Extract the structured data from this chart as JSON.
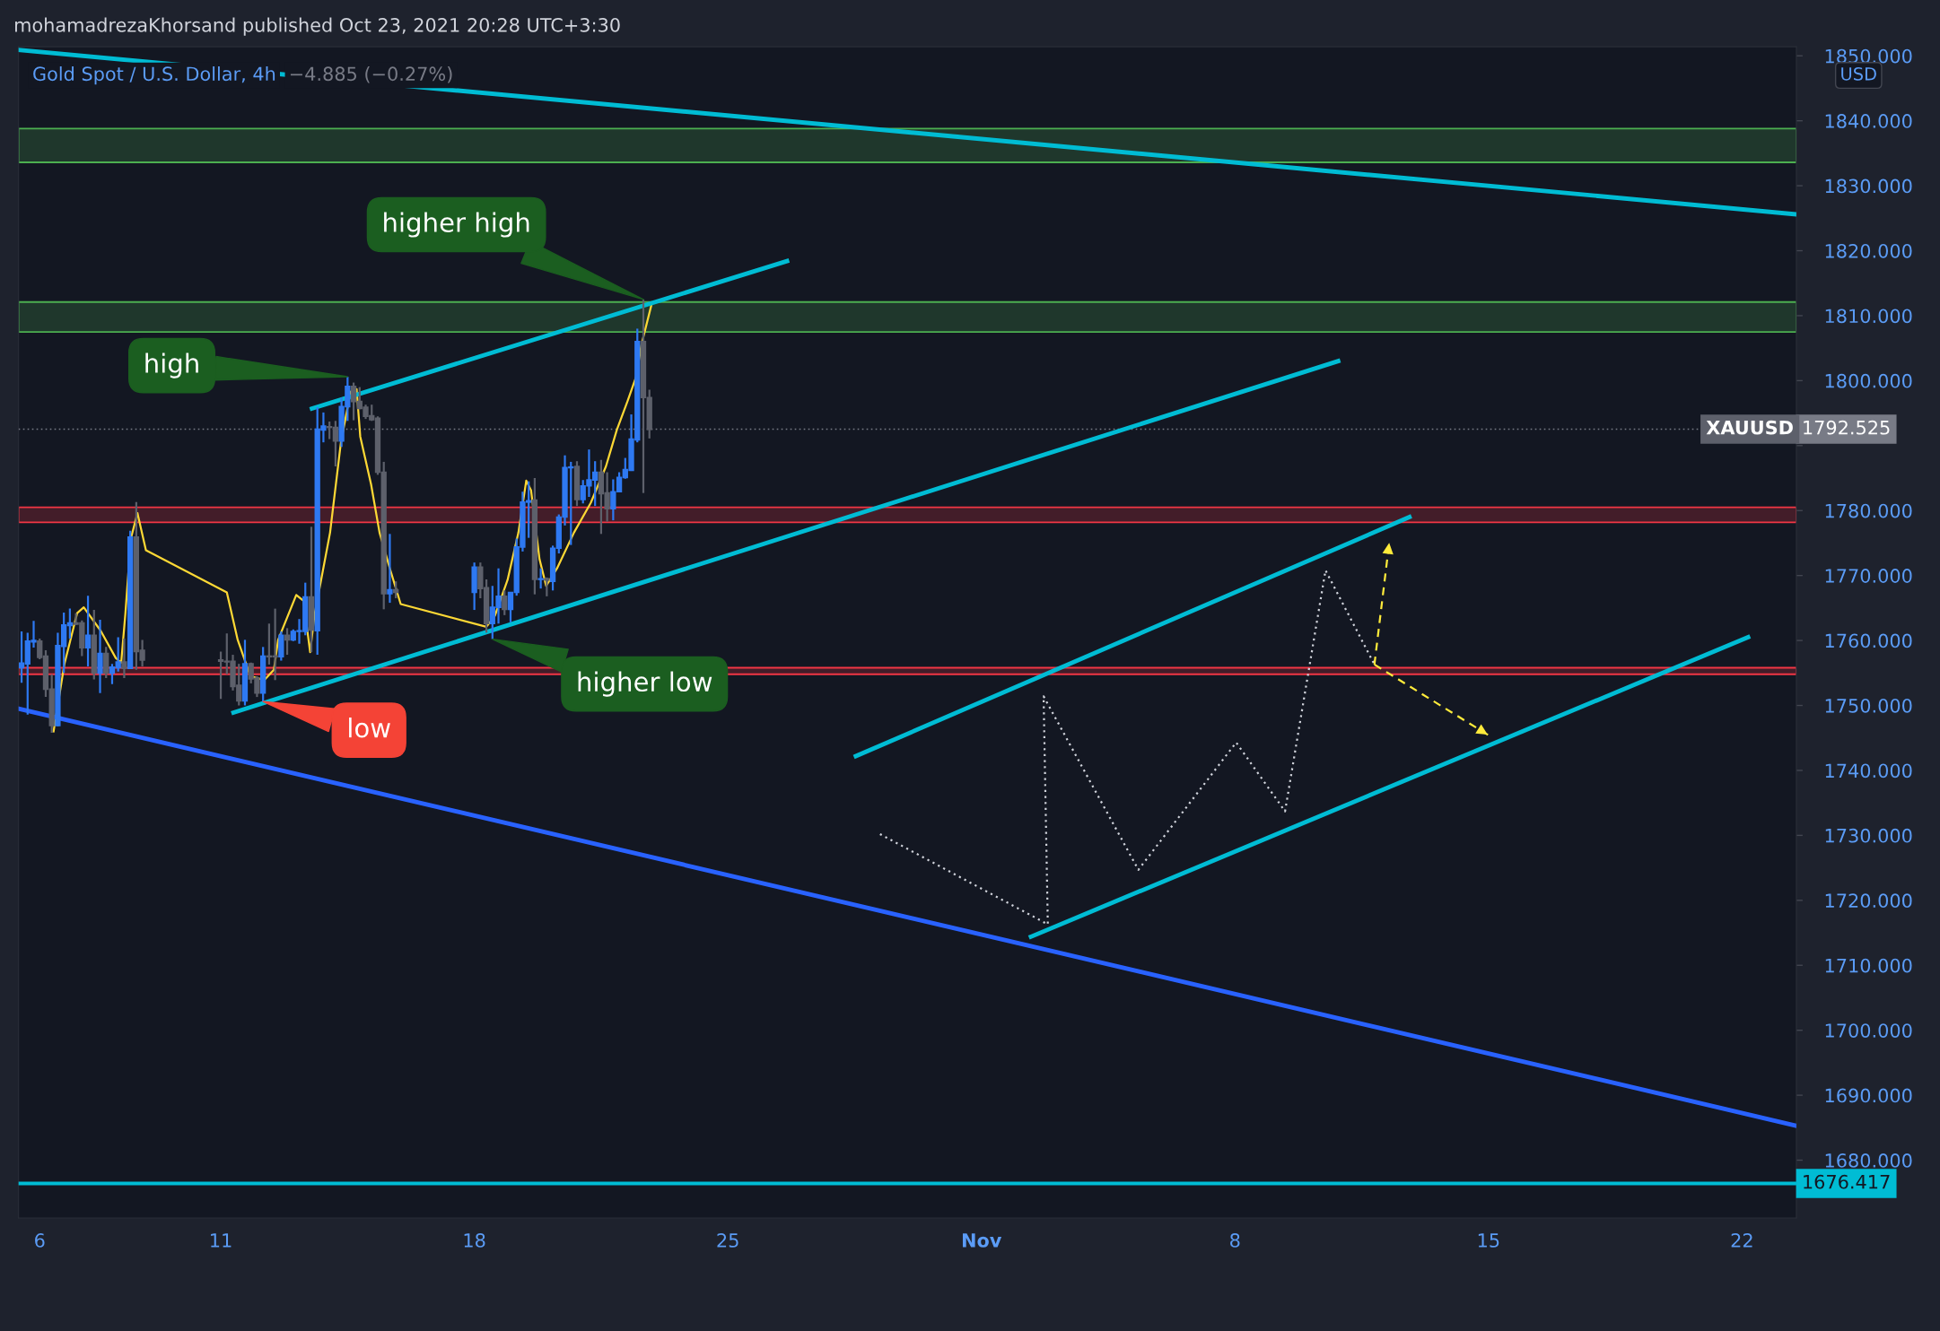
{
  "chart_data": {
    "type": "candlestick",
    "title": "mohamadrezaKhorsand published Oct 23, 2021 20:28 UTC+3:30",
    "subtitle": "Gold Spot / U.S. Dollar, 4h",
    "x": [
      "2021-10-05T12:00",
      "2021-10-05T16:00",
      "2021-10-05T20:00",
      "2021-10-06T00:00",
      "2021-10-06T04:00",
      "2021-10-06T08:00",
      "2021-10-06T12:00",
      "2021-10-06T16:00",
      "2021-10-06T20:00",
      "2021-10-07T00:00",
      "2021-10-07T04:00",
      "2021-10-07T08:00",
      "2021-10-07T12:00",
      "2021-10-07T16:00",
      "2021-10-07T20:00",
      "2021-10-08T00:00",
      "2021-10-08T04:00",
      "2021-10-08T08:00",
      "2021-10-08T12:00",
      "2021-10-08T16:00",
      "2021-10-08T20:00",
      "2021-10-11T00:00",
      "2021-10-11T04:00",
      "2021-10-11T08:00",
      "2021-10-11T12:00",
      "2021-10-11T16:00",
      "2021-10-11T20:00",
      "2021-10-12T00:00",
      "2021-10-12T04:00",
      "2021-10-12T08:00",
      "2021-10-12T12:00",
      "2021-10-12T16:00",
      "2021-10-12T20:00",
      "2021-10-13T00:00",
      "2021-10-13T04:00",
      "2021-10-13T08:00",
      "2021-10-13T12:00",
      "2021-10-13T16:00",
      "2021-10-13T20:00",
      "2021-10-14T00:00",
      "2021-10-14T04:00",
      "2021-10-14T08:00",
      "2021-10-14T12:00",
      "2021-10-14T16:00",
      "2021-10-14T20:00",
      "2021-10-15T00:00",
      "2021-10-15T04:00",
      "2021-10-15T08:00",
      "2021-10-15T12:00",
      "2021-10-15T16:00",
      "2021-10-15T20:00",
      "2021-10-18T00:00",
      "2021-10-18T04:00",
      "2021-10-18T08:00",
      "2021-10-18T12:00",
      "2021-10-18T16:00",
      "2021-10-18T20:00",
      "2021-10-19T00:00",
      "2021-10-19T04:00",
      "2021-10-19T08:00",
      "2021-10-19T12:00",
      "2021-10-19T16:00",
      "2021-10-19T20:00",
      "2021-10-20T00:00",
      "2021-10-20T04:00",
      "2021-10-20T08:00",
      "2021-10-20T12:00",
      "2021-10-20T16:00",
      "2021-10-20T20:00",
      "2021-10-21T00:00",
      "2021-10-21T04:00",
      "2021-10-21T08:00",
      "2021-10-21T12:00",
      "2021-10-21T16:00",
      "2021-10-21T20:00",
      "2021-10-22T00:00",
      "2021-10-22T04:00",
      "2021-10-22T08:00",
      "2021-10-22T12:00",
      "2021-10-22T16:00",
      "2021-10-22T20:00"
    ],
    "ohlc": [
      [
        1755.8,
        1761.4,
        1753.5,
        1756.5
      ],
      [
        1756.4,
        1761.2,
        1748.6,
        1759.9
      ],
      [
        1759.8,
        1763.0,
        1758.9,
        1760.0
      ],
      [
        1759.9,
        1760.3,
        1757.1,
        1757.4
      ],
      [
        1757.6,
        1758.5,
        1751.3,
        1752.5
      ],
      [
        1752.5,
        1754.8,
        1745.8,
        1746.9
      ],
      [
        1746.9,
        1761.2,
        1746.8,
        1759.2
      ],
      [
        1759.1,
        1764.3,
        1755.0,
        1762.4
      ],
      [
        1762.3,
        1764.9,
        1760.3,
        1762.7
      ],
      [
        1762.7,
        1764.2,
        1762.4,
        1762.5
      ],
      [
        1762.7,
        1763.1,
        1757.6,
        1758.9
      ],
      [
        1758.9,
        1766.9,
        1756.0,
        1760.8
      ],
      [
        1760.8,
        1764.7,
        1754.0,
        1755.0
      ],
      [
        1755.0,
        1763.2,
        1751.9,
        1758.0
      ],
      [
        1758.0,
        1759.0,
        1754.2,
        1755.0
      ],
      [
        1755.0,
        1756.4,
        1753.3,
        1755.9
      ],
      [
        1755.8,
        1760.5,
        1755.2,
        1756.7
      ],
      [
        1756.7,
        1760.3,
        1754.2,
        1755.7
      ],
      [
        1755.7,
        1776.9,
        1755.6,
        1775.9
      ],
      [
        1775.9,
        1781.3,
        1755.5,
        1758.3
      ],
      [
        1758.5,
        1760.1,
        1756.0,
        1757.0
      ],
      [
        1757.0,
        1758.3,
        1751.0,
        1756.8
      ],
      [
        1756.8,
        1761.1,
        1754.8,
        1756.7
      ],
      [
        1756.8,
        1757.8,
        1752.3,
        1752.9
      ],
      [
        1753.1,
        1756.4,
        1750.0,
        1750.7
      ],
      [
        1750.7,
        1760.1,
        1750.0,
        1756.4
      ],
      [
        1756.4,
        1756.6,
        1753.4,
        1754.1
      ],
      [
        1754.2,
        1754.5,
        1751.3,
        1751.9
      ],
      [
        1751.9,
        1759.0,
        1750.6,
        1757.6
      ],
      [
        1757.6,
        1762.6,
        1756.3,
        1757.5
      ],
      [
        1757.6,
        1764.9,
        1753.9,
        1757.5
      ],
      [
        1757.5,
        1761.4,
        1756.9,
        1760.8
      ],
      [
        1760.8,
        1761.9,
        1757.8,
        1760.1
      ],
      [
        1760.1,
        1761.7,
        1759.9,
        1761.4
      ],
      [
        1761.4,
        1763.3,
        1759.5,
        1761.5
      ],
      [
        1761.4,
        1768.9,
        1760.8,
        1766.7
      ],
      [
        1766.7,
        1777.5,
        1758.2,
        1761.6
      ],
      [
        1761.5,
        1795.9,
        1757.8,
        1792.5
      ],
      [
        1792.4,
        1795.1,
        1790.5,
        1793.0
      ],
      [
        1792.9,
        1793.7,
        1791.0,
        1792.8
      ],
      [
        1792.8,
        1793.8,
        1786.8,
        1790.7
      ],
      [
        1790.7,
        1797.4,
        1789.8,
        1796.0
      ],
      [
        1796.0,
        1800.6,
        1793.8,
        1799.1
      ],
      [
        1799.1,
        1799.7,
        1793.9,
        1796.8
      ],
      [
        1796.8,
        1799.0,
        1795.6,
        1795.7
      ],
      [
        1795.9,
        1796.3,
        1794.1,
        1794.5
      ],
      [
        1794.6,
        1796.3,
        1793.8,
        1794.0
      ],
      [
        1794.2,
        1794.5,
        1785.5,
        1785.9
      ],
      [
        1785.9,
        1787.5,
        1764.8,
        1767.2
      ],
      [
        1767.2,
        1776.4,
        1765.8,
        1767.8
      ],
      [
        1767.8,
        1769.1,
        1766.5,
        1767.4
      ],
      [
        1767.4,
        1772.0,
        1764.7,
        1771.3
      ],
      [
        1771.3,
        1772.0,
        1766.5,
        1768.0
      ],
      [
        1768.1,
        1769.4,
        1761.2,
        1762.6
      ],
      [
        1762.6,
        1768.4,
        1760.2,
        1765.1
      ],
      [
        1765.1,
        1771.1,
        1762.6,
        1766.8
      ],
      [
        1766.8,
        1767.7,
        1763.9,
        1764.8
      ],
      [
        1764.8,
        1767.4,
        1762.8,
        1767.4
      ],
      [
        1767.4,
        1775.7,
        1766.9,
        1774.4
      ],
      [
        1774.4,
        1782.9,
        1773.7,
        1781.3
      ],
      [
        1781.3,
        1784.5,
        1775.8,
        1781.5
      ],
      [
        1781.6,
        1785.0,
        1767.1,
        1769.4
      ],
      [
        1769.4,
        1771.1,
        1768.0,
        1769.5
      ],
      [
        1769.5,
        1769.7,
        1766.8,
        1769.3
      ],
      [
        1769.1,
        1774.6,
        1767.7,
        1774.2
      ],
      [
        1774.2,
        1779.4,
        1773.4,
        1779.0
      ],
      [
        1779.0,
        1788.5,
        1777.7,
        1786.6
      ],
      [
        1786.6,
        1787.5,
        1774.7,
        1786.7
      ],
      [
        1786.8,
        1787.6,
        1780.7,
        1781.7
      ],
      [
        1781.7,
        1784.7,
        1781.1,
        1783.8
      ],
      [
        1783.8,
        1789.4,
        1782.1,
        1784.7
      ],
      [
        1784.7,
        1787.6,
        1780.7,
        1785.9
      ],
      [
        1785.9,
        1787.8,
        1776.4,
        1782.6
      ],
      [
        1782.7,
        1785.9,
        1778.3,
        1780.3
      ],
      [
        1780.3,
        1784.8,
        1778.5,
        1782.9
      ],
      [
        1782.9,
        1785.9,
        1782.9,
        1785.1
      ],
      [
        1785.1,
        1788.1,
        1784.9,
        1786.3
      ],
      [
        1786.2,
        1794.8,
        1786.1,
        1791.0
      ],
      [
        1790.9,
        1808.0,
        1790.5,
        1806.0
      ],
      [
        1806.0,
        1812.5,
        1782.7,
        1797.4
      ],
      [
        1797.4,
        1798.6,
        1791.1,
        1792.5
      ]
    ],
    "colors": [
      "#2e79f2",
      "#2e79f2",
      "#2e79f2",
      "#5d606b",
      "#5d606b",
      "#5d606b",
      "#2e79f2",
      "#2e79f2",
      "#2e79f2",
      "#5d606b",
      "#5d606b",
      "#2e79f2",
      "#5d606b",
      "#2e79f2",
      "#5d606b",
      "#2e79f2",
      "#2e79f2",
      "#5d606b",
      "#2e79f2",
      "#5d606b",
      "#5d606b",
      "#5d606b",
      "#5d606b",
      "#5d606b",
      "#5d606b",
      "#2e79f2",
      "#5d606b",
      "#5d606b",
      "#2e79f2",
      "#5d606b",
      "#5d606b",
      "#2e79f2",
      "#5d606b",
      "#2e79f2",
      "#2e79f2",
      "#2e79f2",
      "#5d606b",
      "#2e79f2",
      "#2e79f2",
      "#5d606b",
      "#5d606b",
      "#2e79f2",
      "#2e79f2",
      "#5d606b",
      "#5d606b",
      "#5d606b",
      "#5d606b",
      "#5d606b",
      "#5d606b",
      "#2e79f2",
      "#5d606b",
      "#2e79f2",
      "#5d606b",
      "#5d606b",
      "#2e79f2",
      "#2e79f2",
      "#5d606b",
      "#2e79f2",
      "#2e79f2",
      "#2e79f2",
      "#2e79f2",
      "#5d606b",
      "#2e79f2",
      "#5d606b",
      "#2e79f2",
      "#2e79f2",
      "#2e79f2",
      "#2e79f2",
      "#5d606b",
      "#2e79f2",
      "#2e79f2",
      "#2e79f2",
      "#5d606b",
      "#5d606b",
      "#2e79f2",
      "#2e79f2",
      "#2e79f2",
      "#2e79f2",
      "#2e79f2",
      "#5d606b",
      "#5d606b"
    ],
    "series": [
      {
        "type": "line",
        "color": "#fdd835",
        "line_style": "solid",
        "x": [
          "2021-10-06T09:12",
          "2021-10-06T16:24",
          "2021-10-07T00:48",
          "2021-10-07T05:12",
          "2021-10-07T16:24",
          "2021-10-08T02:24",
          "2021-10-08T06:00",
          "2021-10-08T08:48",
          "2021-10-08T12:24",
          "2021-10-08T16:48",
          "2021-10-08T22:24",
          "2021-10-11T04:00",
          "2021-10-11T11:12",
          "2021-10-11T19:36",
          "2021-10-12T04:48",
          "2021-10-12T11:12",
          "2021-10-12T14:00",
          "2021-10-13T02:00",
          "2021-10-13T06:48",
          "2021-10-13T11:12",
          "2021-10-13T14:00",
          "2021-10-14T00:24",
          "2021-10-14T07:36",
          "2021-10-14T14:00",
          "2021-10-14T18:00",
          "2021-10-14T20:24",
          "2021-10-15T03:36",
          "2021-10-15T09:12",
          "2021-10-15T16:00",
          "2021-10-15T23:12",
          "2021-10-18T08:00",
          "2021-10-18T13:36",
          "2021-10-18T22:00",
          "2021-10-19T05:12",
          "2021-10-19T10:24",
          "2021-10-19T13:36",
          "2021-10-19T19:12",
          "2021-10-19T23:36",
          "2021-10-20T06:48",
          "2021-10-20T18:00",
          "2021-10-21T05:12",
          "2021-10-21T15:12",
          "2021-10-21T22:24",
          "2021-10-22T05:36",
          "2021-10-22T11:12",
          "2021-10-22T14:48",
          "2021-10-22T21:36"
        ],
        "values": [
          1746.0,
          1756.4,
          1764.2,
          1765.1,
          1761.5,
          1757.3,
          1756.6,
          1764.2,
          1775.7,
          1779.6,
          1773.9,
          1767.4,
          1760.1,
          1754.5,
          1753.9,
          1755.5,
          1760.1,
          1767.0,
          1766.1,
          1758.2,
          1763.8,
          1776.6,
          1790.5,
          1798.3,
          1798.7,
          1791.4,
          1784.0,
          1776.6,
          1771.1,
          1765.6,
          1762.1,
          1763.8,
          1769.3,
          1776.6,
          1784.6,
          1783.1,
          1772.5,
          1768.4,
          1771.1,
          1776.6,
          1781.2,
          1786.8,
          1792.4,
          1796.9,
          1800.6,
          1805.6,
          1811.9
        ]
      },
      {
        "type": "line",
        "color": "#00bcd4",
        "line_style": "solid",
        "x": [
          "2021-10-05T10:00",
          "2021-11-23T12:00"
        ],
        "values": [
          1850.9,
          1825.6
        ]
      },
      {
        "type": "line",
        "color": "#2962ff",
        "line_style": "solid",
        "x": [
          "2021-10-05T10:00",
          "2021-11-23T12:00"
        ],
        "values": [
          1749.5,
          1685.3
        ]
      },
      {
        "type": "line",
        "color": "#00bcd4",
        "line_style": "solid",
        "x": [
          "2021-10-13T12:24",
          "2021-10-26T15:12"
        ],
        "values": [
          1795.7,
          1818.4
        ]
      },
      {
        "type": "line",
        "color": "#00bcd4",
        "line_style": "solid",
        "x": [
          "2021-10-11T08:24",
          "2021-11-10T20:24"
        ],
        "values": [
          1748.9,
          1803.0
        ]
      },
      {
        "type": "line",
        "color": "#00bcd4",
        "line_style": "solid",
        "x": [
          "2021-10-28T12:48",
          "2021-11-12T19:36"
        ],
        "values": [
          1742.2,
          1779.0
        ]
      },
      {
        "type": "line",
        "color": "#00bcd4",
        "line_style": "solid",
        "x": [
          "2021-11-02T08:48",
          "2021-11-22T04:00"
        ],
        "values": [
          1714.4,
          1760.5
        ]
      },
      {
        "type": "line",
        "color": "#d1d4dc",
        "line_style": "dotted",
        "x": [
          "2021-10-29T04:48",
          "2021-11-02T20:00",
          "2021-11-02T17:12",
          "2021-11-05T08:00",
          "2021-11-08T00:48",
          "2021-11-09T09:12",
          "2021-11-10T12:00",
          "2021-11-11T20:24"
        ],
        "values": [
          1730.2,
          1716.3,
          1751.4,
          1724.7,
          1744.3,
          1733.7,
          1770.8,
          1756.3
        ]
      },
      {
        "type": "line",
        "color": "#ffeb3b",
        "line_style": "dashed",
        "x": [
          "2021-11-11T20:24",
          "2021-11-12T06:24"
        ],
        "values": [
          1756.3,
          1775.4
        ]
      },
      {
        "type": "line",
        "color": "#ffeb3b",
        "line_style": "dashed",
        "x": [
          "2021-11-11T20:24",
          "2021-11-15T00:48"
        ],
        "values": [
          1756.3,
          1745.3
        ]
      }
    ],
    "xlim": [
      "2021-10-05T10:00",
      "2021-11-23T12:00"
    ],
    "xticks": [
      {
        "value": "2021-10-06",
        "label": "6"
      },
      {
        "value": "2021-10-11",
        "label": "11"
      },
      {
        "value": "2021-10-18",
        "label": "18"
      },
      {
        "value": "2021-10-25",
        "label": "25"
      },
      {
        "value": "2021-11-01",
        "label": "Nov"
      },
      {
        "value": "2021-11-08",
        "label": "8"
      },
      {
        "value": "2021-11-15",
        "label": "15"
      },
      {
        "value": "2021-11-22",
        "label": "22"
      }
    ],
    "ylim": [
      1671.1,
      1851.4
    ],
    "yticks": [
      {
        "value": 1680,
        "label": "1680.000"
      },
      {
        "value": 1690,
        "label": "1690.000"
      },
      {
        "value": 1700,
        "label": "1700.000"
      },
      {
        "value": 1710,
        "label": "1710.000"
      },
      {
        "value": 1720,
        "label": "1720.000"
      },
      {
        "value": 1730,
        "label": "1730.000"
      },
      {
        "value": 1740,
        "label": "1740.000"
      },
      {
        "value": 1750,
        "label": "1750.000"
      },
      {
        "value": 1760,
        "label": "1760.000"
      },
      {
        "value": 1770,
        "label": "1770.000"
      },
      {
        "value": 1780,
        "label": "1780.000"
      },
      {
        "value": 1790,
        "label": null
      },
      {
        "value": 1800,
        "label": "1800.000"
      },
      {
        "value": 1810,
        "label": "1810.000"
      },
      {
        "value": 1820,
        "label": "1820.000"
      },
      {
        "value": 1830,
        "label": "1830.000"
      },
      {
        "value": 1840,
        "label": "1840.000"
      },
      {
        "value": 1850,
        "label": "1850.000"
      }
    ],
    "bands": [
      {
        "axis": "y",
        "from": 1833.6,
        "to": 1838.8,
        "color": "#4caf50"
      },
      {
        "axis": "y",
        "from": 1807.5,
        "to": 1812.1,
        "color": "#4caf50"
      },
      {
        "axis": "y",
        "from": 1778.2,
        "to": 1780.5,
        "color": "#f23645"
      },
      {
        "axis": "y",
        "from": 1754.8,
        "to": 1755.8,
        "color": "#f23645"
      }
    ],
    "ref_lines": [
      {
        "axis": "y",
        "value": 1792.525,
        "label": "1792.525",
        "color": "#787b86",
        "line_style": "dotted"
      },
      {
        "axis": "y",
        "value": 1676.417,
        "label": "1676.417",
        "color": "#00bcd4",
        "line_style": "solid"
      }
    ],
    "annotations": [
      {
        "text": "higher high",
        "x": "2021-10-22T16:00",
        "y": 1812.5
      },
      {
        "text": "high",
        "x": "2021-10-14T12:00",
        "y": 1800.6
      },
      {
        "text": "higher low",
        "x": "2021-10-18T12:00",
        "y": 1760.2
      },
      {
        "text": "low",
        "x": "2021-10-12T04:00",
        "y": 1750.6
      },
      "−4.885 (−0.27%)",
      "USD",
      {
        "text": "XAUUSD",
        "y": 1792.525
      }
    ]
  }
}
